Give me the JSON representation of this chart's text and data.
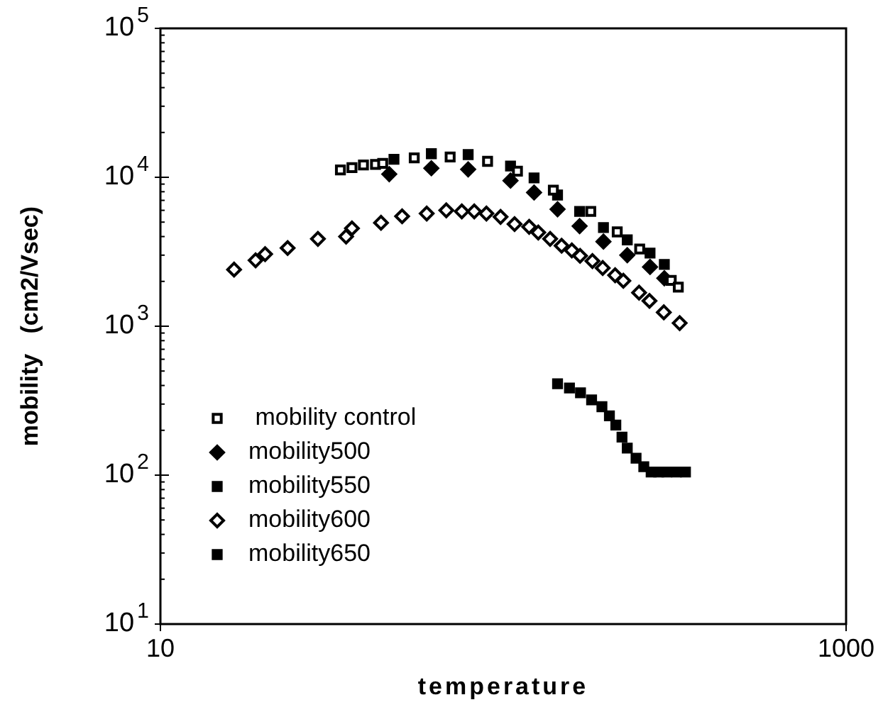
{
  "chart_data": {
    "type": "scatter",
    "xlabel": "temperature",
    "ylabel": "mobility   (cm2/Vsec)",
    "log": "xy",
    "xlim": [
      10,
      1000
    ],
    "xticks": [
      10,
      1000
    ],
    "ylim": [
      10,
      100000
    ],
    "yticks": [
      {
        "value": 10,
        "label": "10$^{1}$"
      },
      {
        "value": 20,
        "label": null
      },
      {
        "value": 30,
        "label": null
      },
      {
        "value": 40,
        "label": null
      },
      {
        "value": 50,
        "label": null
      },
      {
        "value": 60,
        "label": null
      },
      {
        "value": 70,
        "label": null
      },
      {
        "value": 80,
        "label": null
      },
      {
        "value": 90,
        "label": null
      },
      {
        "value": 100,
        "label": "10$^{2}$"
      },
      {
        "value": 200,
        "label": null
      },
      {
        "value": 300,
        "label": null
      },
      {
        "value": 400,
        "label": null
      },
      {
        "value": 500,
        "label": null
      },
      {
        "value": 600,
        "label": null
      },
      {
        "value": 700,
        "label": null
      },
      {
        "value": 800,
        "label": null
      },
      {
        "value": 900,
        "label": null
      },
      {
        "value": 1000,
        "label": "10$^{3}$"
      },
      {
        "value": 2000,
        "label": null
      },
      {
        "value": 3000,
        "label": null
      },
      {
        "value": 4000,
        "label": null
      },
      {
        "value": 5000,
        "label": null
      },
      {
        "value": 6000,
        "label": null
      },
      {
        "value": 7000,
        "label": null
      },
      {
        "value": 8000,
        "label": null
      },
      {
        "value": 9000,
        "label": null
      },
      {
        "value": 10000,
        "label": "10$^{4}$"
      },
      {
        "value": 20000,
        "label": null
      },
      {
        "value": 30000,
        "label": null
      },
      {
        "value": 40000,
        "label": null
      },
      {
        "value": 50000,
        "label": null
      },
      {
        "value": 60000,
        "label": null
      },
      {
        "value": 70000,
        "label": null
      },
      {
        "value": 80000,
        "label": null
      },
      {
        "value": 90000,
        "label": null
      },
      {
        "value": 100000,
        "label": "10$^{5}$"
      }
    ],
    "grid": false,
    "legend": "bottom left",
    "series": [
      {
        "name": " mobility control",
        "color": "#000000",
        "marker": "square",
        "x": [
          33.5,
          36.2,
          39.1,
          42.4,
          44.5,
          55,
          70,
          90,
          110,
          140,
          180,
          215,
          250,
          309,
          324
        ],
        "values": [
          11200,
          11600,
          12100,
          12200,
          12400,
          13500,
          13700,
          12800,
          11000,
          8200,
          5900,
          4300,
          3300,
          2030,
          1830
        ]
      },
      {
        "name": "mobility500",
        "color": "#000000",
        "marker": "diamond",
        "x": [
          46.5,
          61.7,
          79,
          105,
          123,
          144,
          167,
          196,
          230,
          268,
          295
        ],
        "values": [
          10500,
          11500,
          11300,
          9500,
          7900,
          6100,
          4700,
          3700,
          3000,
          2500,
          2100
        ]
      },
      {
        "name": "mobility550",
        "color": "#000000",
        "marker": "square",
        "x": [
          48,
          61.7,
          79,
          105,
          123,
          144,
          167,
          196,
          230,
          268,
          295
        ],
        "values": [
          13200,
          14400,
          14200,
          11900,
          9900,
          7600,
          5900,
          4600,
          3800,
          3100,
          2600
        ]
      },
      {
        "name": "mobility600",
        "color": "#000000",
        "marker": "diamond",
        "x": [
          16.4,
          18.95,
          20.2,
          23.5,
          28.8,
          34.8,
          36.2,
          44,
          50.7,
          59.8,
          68.2,
          75.7,
          82.3,
          89.3,
          98.2,
          107.9,
          119,
          126.5,
          137,
          148,
          158.5,
          167.5,
          182,
          195,
          212,
          224,
          249,
          267,
          294,
          327
        ],
        "values": [
          2400,
          2770,
          3050,
          3350,
          3860,
          4000,
          4540,
          4950,
          5470,
          5710,
          6000,
          5900,
          5900,
          5710,
          5420,
          4850,
          4650,
          4260,
          3860,
          3470,
          3230,
          2970,
          2740,
          2460,
          2200,
          2020,
          1680,
          1480,
          1240,
          1050
        ]
      },
      {
        "name": "mobility650",
        "color": "#000000",
        "marker": "square",
        "x": [
          144,
          156,
          168,
          181,
          194,
          204,
          213,
          222,
          230,
          244,
          257,
          270,
          284,
          300,
          320,
          340
        ],
        "values": [
          411,
          385,
          357,
          320,
          288,
          250,
          217,
          180,
          152,
          130,
          114,
          105,
          105,
          105,
          105,
          105
        ]
      }
    ]
  }
}
